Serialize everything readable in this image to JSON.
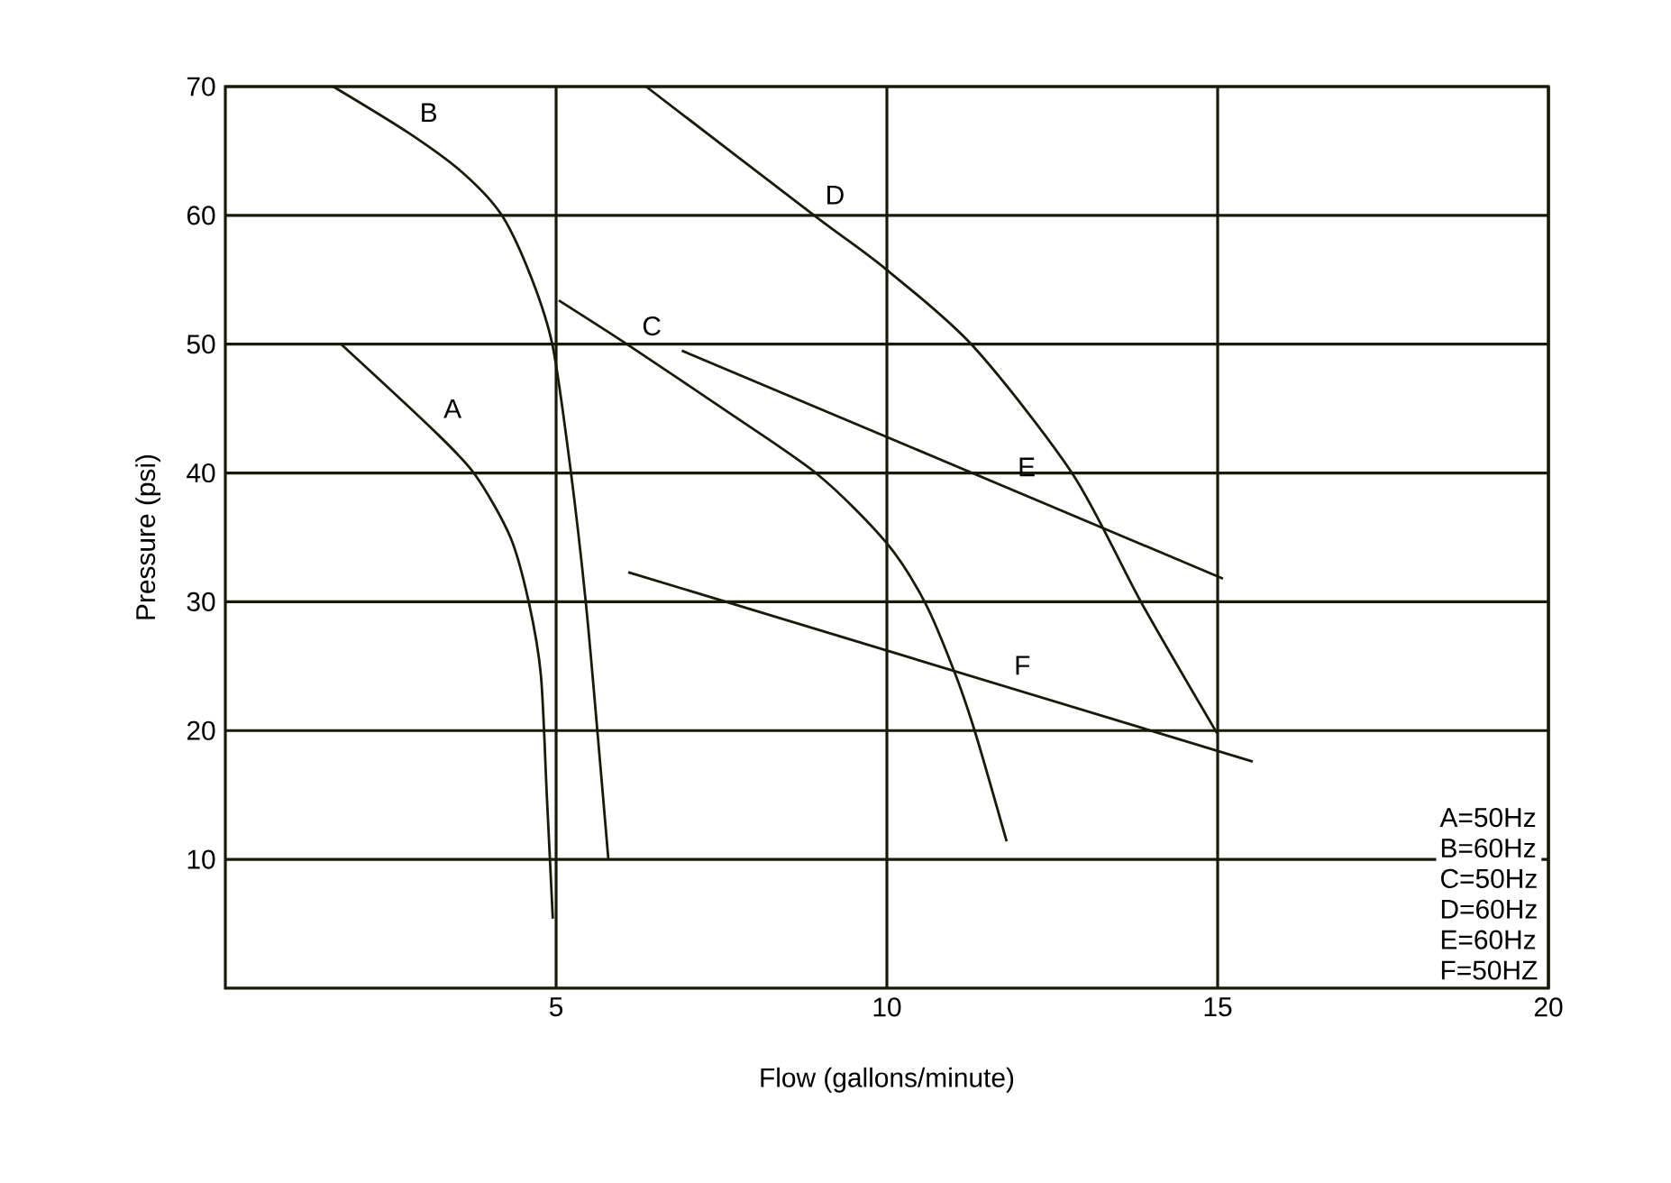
{
  "chart_data": {
    "type": "line",
    "xlabel": "Flow (gallons/minute)",
    "ylabel": "Pressure (psi)",
    "xlim": [
      0,
      20
    ],
    "ylim": [
      0,
      70
    ],
    "xticks": [
      5,
      10,
      15,
      20
    ],
    "yticks": [
      10,
      20,
      30,
      40,
      50,
      60,
      70
    ],
    "grid": true,
    "marker": "none",
    "line_style": "solid",
    "series": [
      {
        "name": "A",
        "color": "#1a1a0a",
        "x": [
          1.75,
          3.13,
          3.77,
          4.31,
          4.59,
          4.77,
          4.86,
          4.95
        ],
        "values": [
          50,
          43.4,
          39.9,
          35.0,
          29.9,
          24.3,
          14.9,
          5.4
        ]
      },
      {
        "name": "B",
        "color": "#1a1a0a",
        "x": [
          1.63,
          2.77,
          3.59,
          4.18,
          4.63,
          4.95,
          5.22,
          5.45,
          5.63,
          5.79
        ],
        "values": [
          70,
          66.4,
          63.3,
          60,
          55.1,
          49.8,
          40.2,
          29.9,
          19.6,
          10
        ]
      },
      {
        "name": "C",
        "color": "#1a1a0a",
        "x": [
          5.04,
          6.13,
          7.49,
          8.95,
          9.99,
          10.58,
          11.04,
          11.35,
          11.81
        ],
        "values": [
          53.4,
          49.8,
          45.1,
          39.9,
          34.6,
          29.9,
          24.3,
          19.6,
          11.4
        ]
      },
      {
        "name": "D",
        "color": "#1a1a0a",
        "x": [
          6.36,
          8.9,
          9.99,
          11.31,
          12.81,
          13.85,
          14.99
        ],
        "values": [
          70,
          60,
          55.8,
          49.8,
          39.9,
          29.9,
          19.8
        ]
      },
      {
        "name": "E",
        "color": "#1a1a0a",
        "x": [
          6.9,
          15.08
        ],
        "values": [
          49.5,
          31.8
        ]
      },
      {
        "name": "F",
        "color": "#1a1a0a",
        "x": [
          6.09,
          15.53
        ],
        "values": [
          32.3,
          17.6
        ]
      }
    ],
    "annotations": [
      "A=50Hz",
      "B=60Hz",
      "C=50Hz",
      "D=60Hz",
      "E=60Hz",
      "F=50HZ"
    ]
  }
}
